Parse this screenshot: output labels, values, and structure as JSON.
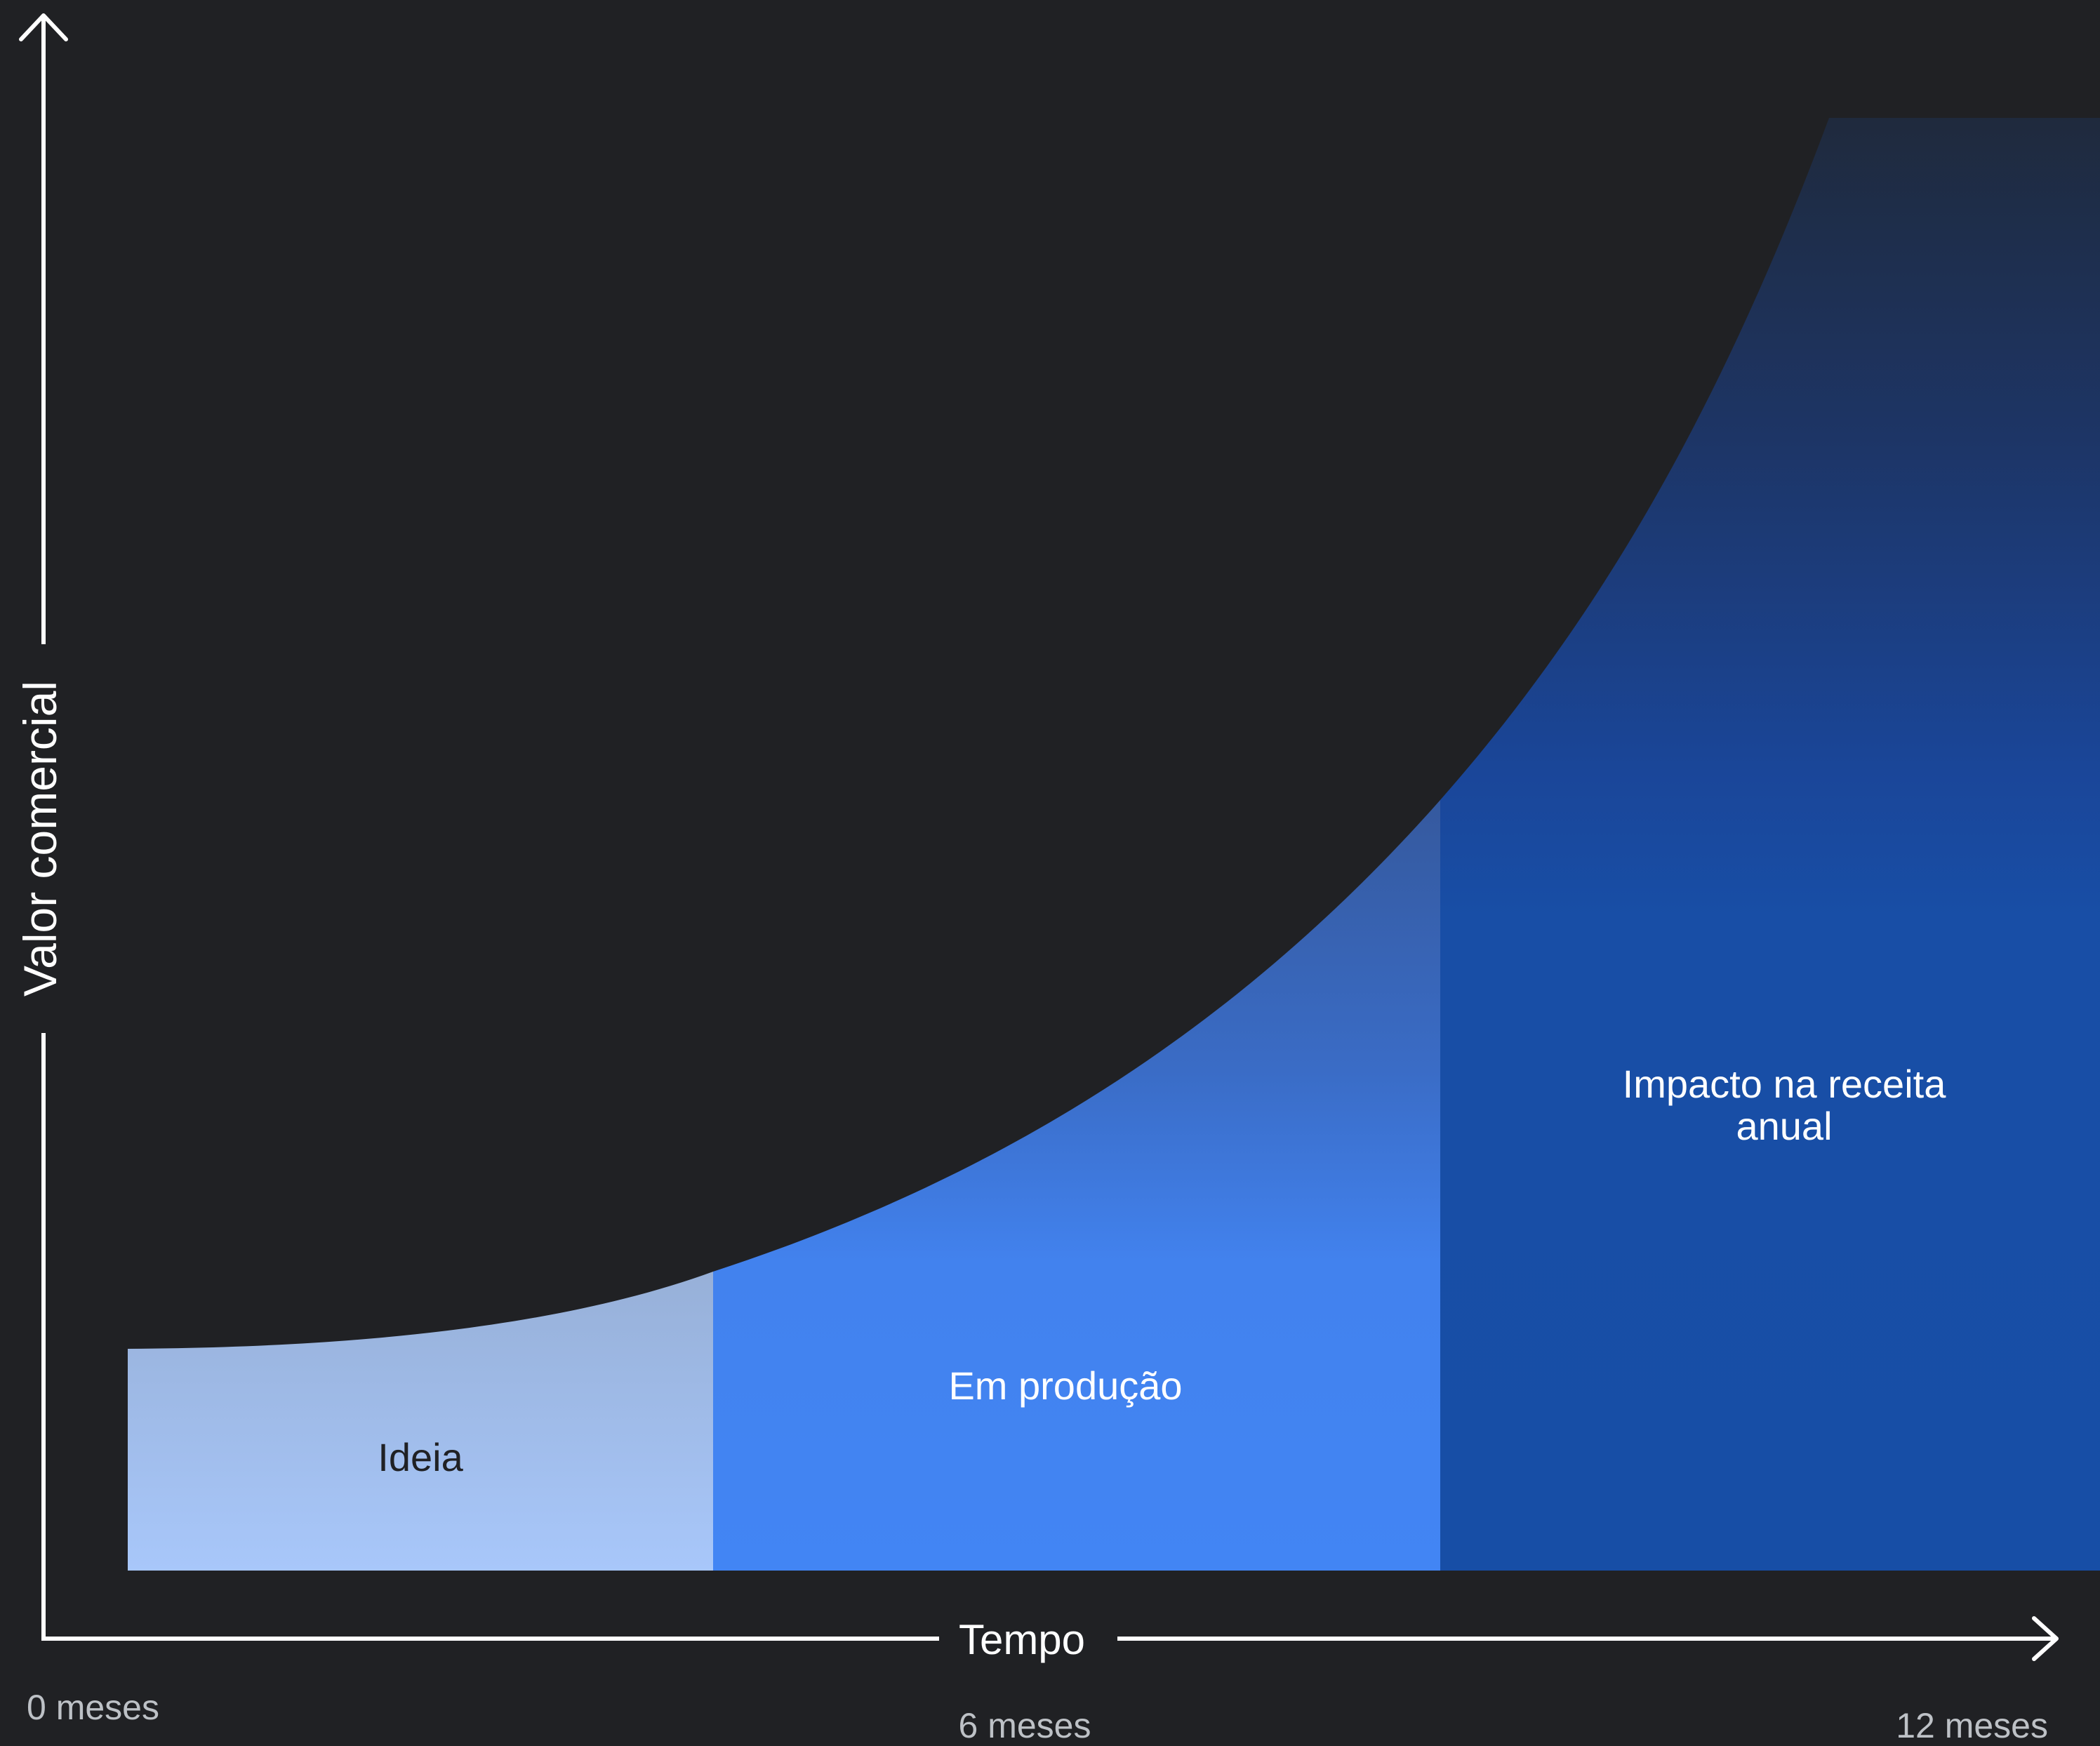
{
  "axes": {
    "y_label": "Valor comercial",
    "x_label": "Tempo"
  },
  "time_ticks": [
    "0 meses",
    "6 meses",
    "12 meses"
  ],
  "stages": [
    {
      "label": "Ideia"
    },
    {
      "label": "Em produção"
    },
    {
      "label": "Impacto na receita",
      "label_line2": "anual"
    }
  ],
  "colors": {
    "background": "#202124",
    "axis": "#ffffff",
    "tick_text": "#bdc1c6",
    "ideia_top": "#97b0d8",
    "ideia_bottom": "#a8c7fa",
    "producao_top": "#35599e",
    "producao_mid": "#3c79e0",
    "producao_bottom": "#4285f4",
    "impacto_top": "#1f2a3d",
    "impacto_mid": "#1a4fa3",
    "impacto_bottom": "#174ea6",
    "ideia_text": "#202124",
    "stage_text": "#ffffff"
  }
}
